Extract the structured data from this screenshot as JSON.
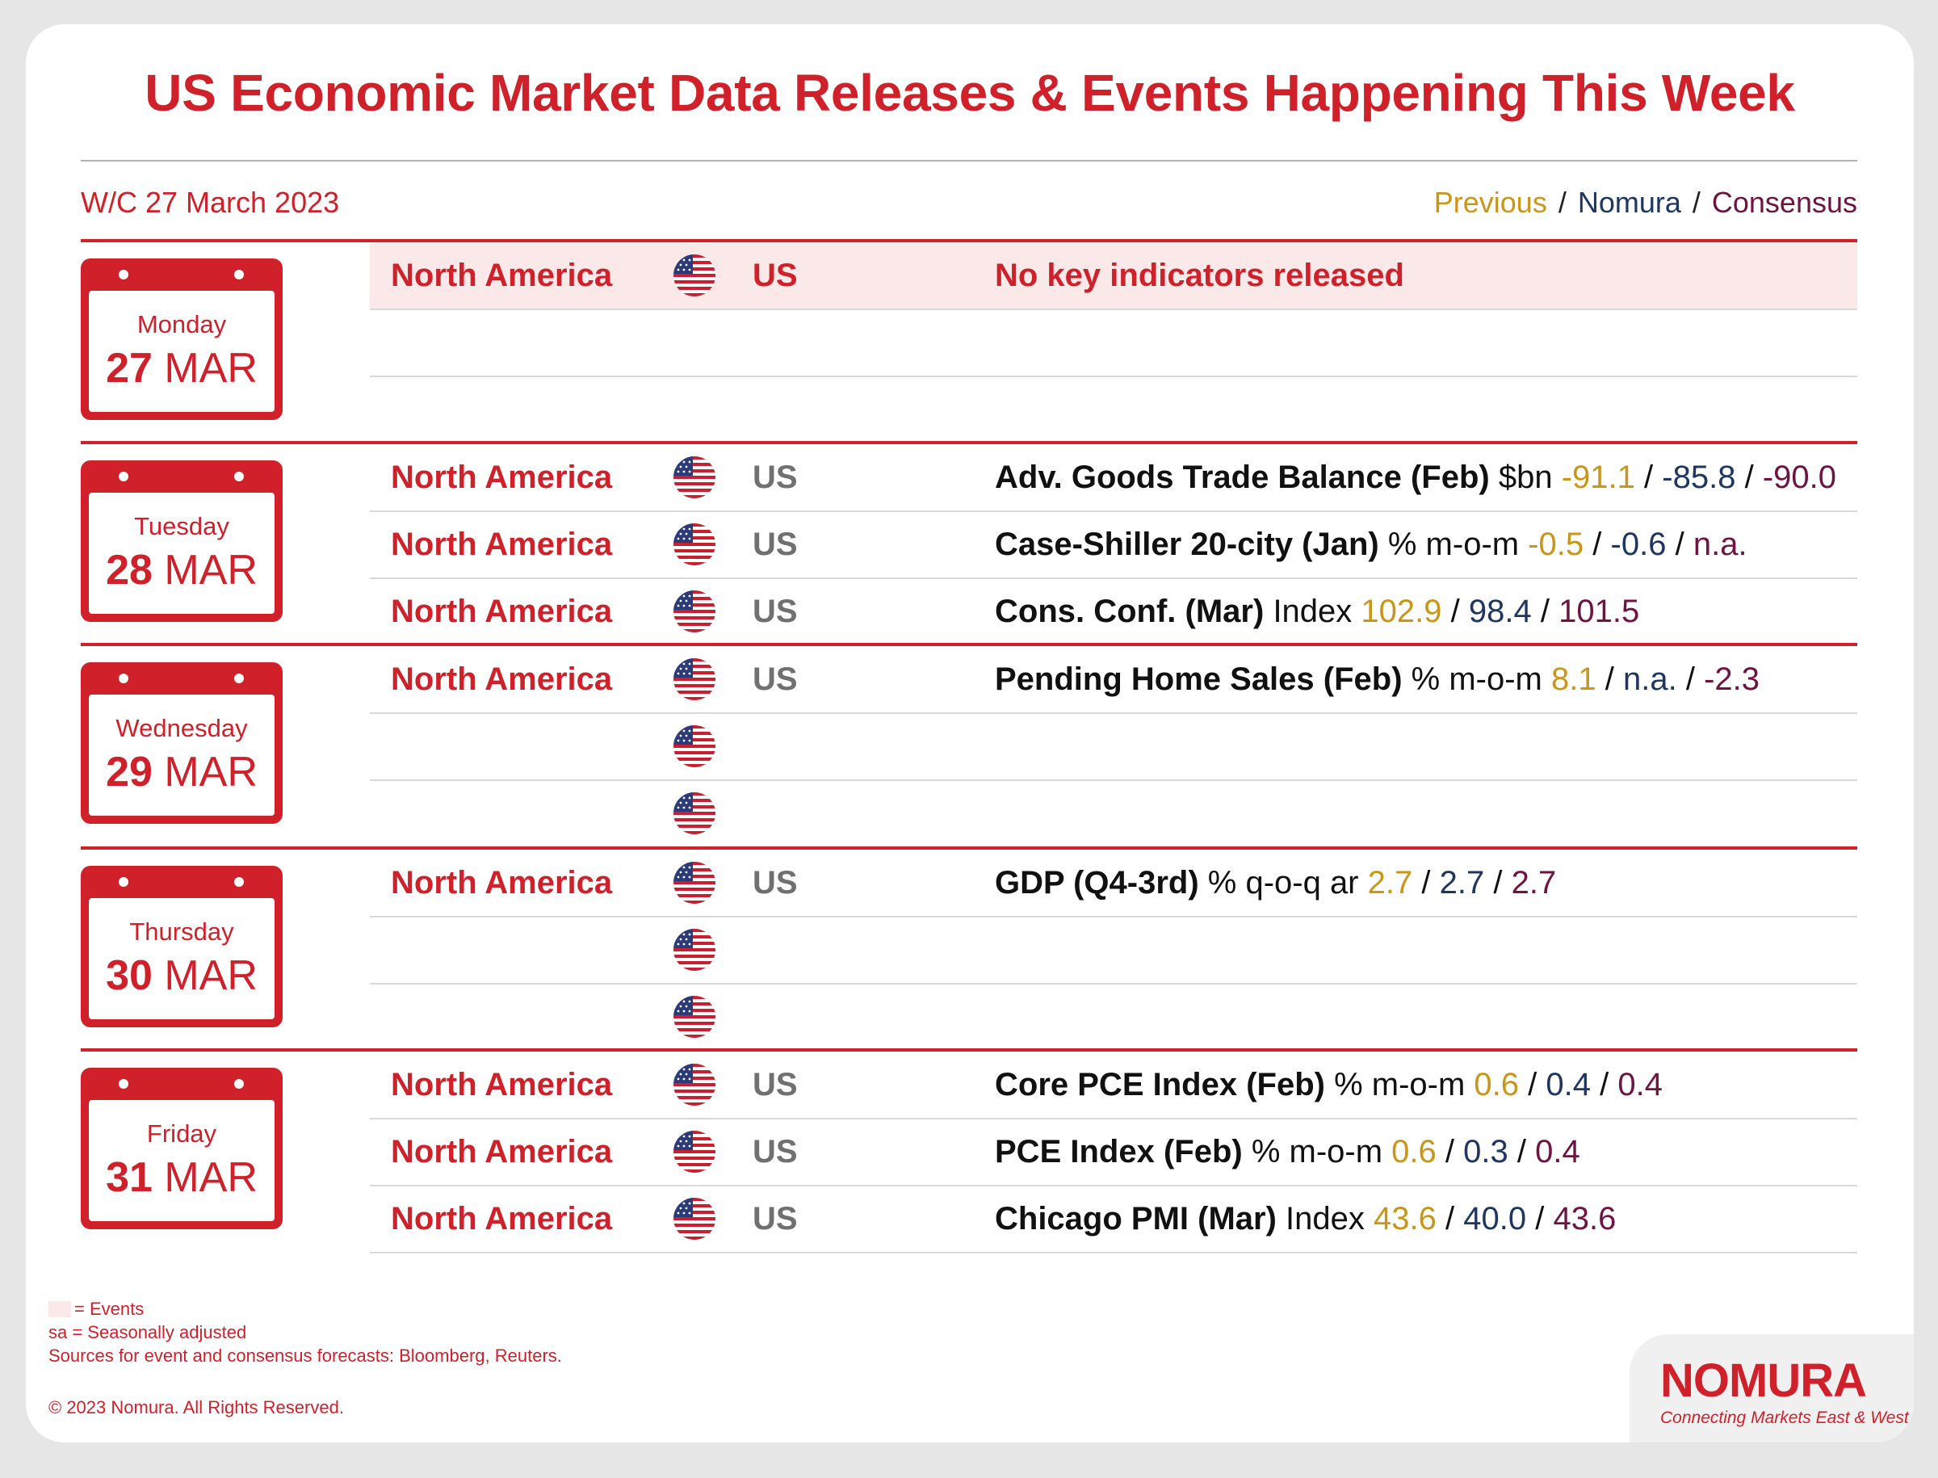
{
  "header": {
    "title": "US Economic Market Data Releases & Events Happening This Week",
    "week": "W/C 27 March 2023",
    "legend": {
      "previous": "Previous",
      "sep": "/",
      "nomura": "Nomura",
      "consensus": "Consensus"
    }
  },
  "days": [
    {
      "weekday": "Monday",
      "date_num": "27",
      "date_month": "MAR",
      "rows": [
        {
          "region": "North America",
          "country": "US",
          "indicator": "No key  indicators released",
          "unit": "",
          "previous": "",
          "nomura": "",
          "consensus": "",
          "event": true
        },
        {
          "region": "",
          "country": "",
          "indicator": "",
          "unit": "",
          "previous": "",
          "nomura": "",
          "consensus": ""
        },
        {
          "region": "",
          "country": "",
          "indicator": "",
          "unit": "",
          "previous": "",
          "nomura": "",
          "consensus": ""
        }
      ]
    },
    {
      "weekday": "Tuesday",
      "date_num": "28",
      "date_month": "MAR",
      "rows": [
        {
          "region": "North America",
          "country": "US",
          "indicator": "Adv. Goods Trade Balance (Feb)",
          "unit": "$bn",
          "previous": "-91.1",
          "nomura": "-85.8",
          "consensus": "-90.0"
        },
        {
          "region": "North America",
          "country": "US",
          "indicator": "Case-Shiller 20-city (Jan)",
          "unit": "% m-o-m",
          "previous": "-0.5",
          "nomura": "-0.6",
          "consensus": "n.a."
        },
        {
          "region": "North America",
          "country": "US",
          "indicator": "Cons. Conf. (Mar)",
          "unit": "Index",
          "previous": "102.9",
          "nomura": "98.4",
          "consensus": "101.5"
        }
      ]
    },
    {
      "weekday": "Wednesday",
      "date_num": "29",
      "date_month": "MAR",
      "rows": [
        {
          "region": "North America",
          "country": "US",
          "indicator": "Pending Home Sales (Feb)",
          "unit": "% m-o-m",
          "previous": "8.1",
          "nomura": "n.a.",
          "consensus": "-2.3"
        },
        {
          "region": "",
          "country": "",
          "indicator": "",
          "unit": "",
          "previous": "",
          "nomura": "",
          "consensus": ""
        },
        {
          "region": "",
          "country": "",
          "indicator": "",
          "unit": "",
          "previous": "",
          "nomura": "",
          "consensus": ""
        }
      ]
    },
    {
      "weekday": "Thursday",
      "date_num": "30",
      "date_month": "MAR",
      "rows": [
        {
          "region": "North America",
          "country": "US",
          "indicator": "GDP (Q4-3rd)",
          "unit": "% q-o-q ar",
          "previous": "2.7",
          "nomura": "2.7",
          "consensus": "2.7"
        },
        {
          "region": "",
          "country": "",
          "indicator": "",
          "unit": "",
          "previous": "",
          "nomura": "",
          "consensus": ""
        },
        {
          "region": "",
          "country": "",
          "indicator": "",
          "unit": "",
          "previous": "",
          "nomura": "",
          "consensus": ""
        }
      ]
    },
    {
      "weekday": "Friday",
      "date_num": "31",
      "date_month": "MAR",
      "rows": [
        {
          "region": "North America",
          "country": "US",
          "indicator": "Core PCE Index (Feb)",
          "unit": "% m-o-m",
          "previous": "0.6",
          "nomura": "0.4",
          "consensus": "0.4"
        },
        {
          "region": "North America",
          "country": "US",
          "indicator": "PCE Index (Feb)",
          "unit": "% m-o-m",
          "previous": "0.6",
          "nomura": "0.3",
          "consensus": "0.4"
        },
        {
          "region": "North America",
          "country": "US",
          "indicator": "Chicago PMI (Mar)",
          "unit": "Index",
          "previous": "43.6",
          "nomura": "40.0",
          "consensus": "43.6"
        }
      ]
    }
  ],
  "footer": {
    "events_note": "= Events",
    "sa_note": "sa = Seasonally adjusted",
    "sources": "Sources for event and consensus forecasts: Bloomberg, Reuters.",
    "copyright": "© 2023 Nomura. All Rights Reserved.",
    "logo": "NOMURA",
    "tagline": "Connecting Markets East & West"
  },
  "colors": {
    "accent": "#d0202a",
    "previous": "#c9961a",
    "nomura": "#1e3660",
    "consensus": "#6d1442",
    "event_bg": "#fbe8e8"
  },
  "icons": {
    "flag": "us-flag-icon"
  }
}
